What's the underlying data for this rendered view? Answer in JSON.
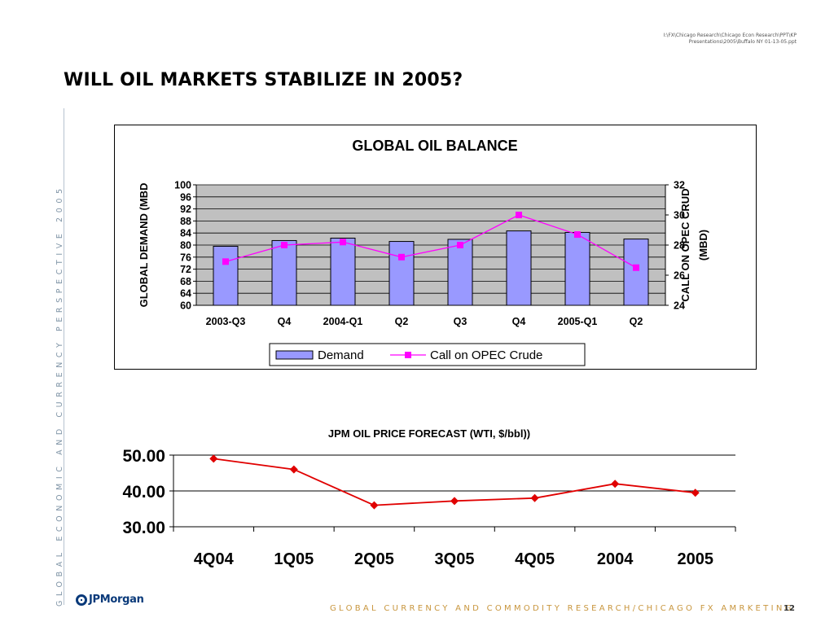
{
  "header": {
    "file_path": "I:\\FX\\Chicago Research\\Chicago Econ Research\\PPT\\KP Presentations\\2005\\Buffalo NY 01-13-05.ppt",
    "title": "WILL OIL MARKETS STABILIZE IN 2005?"
  },
  "side_banner": "GLOBAL ECONOMIC AND CURRENCY PERSPECTIVE 2005",
  "footer": {
    "logo_text": "JPMorgan",
    "text": "GLOBAL CURRENCY AND COMMODITY RESEARCH/CHICAGO FX AMRKETING",
    "page_number": "12"
  },
  "colors": {
    "bar_fill": "#9999ff",
    "plot_bg": "#c0c0c0",
    "opec_line": "#ff00ff",
    "price_line": "#e00000",
    "footer_text": "#c8963e",
    "side_text": "#7f94a6"
  },
  "chart_data": [
    {
      "type": "bar",
      "title": "GLOBAL OIL BALANCE",
      "categories": [
        "2003-Q3",
        "Q4",
        "2004-Q1",
        "Q2",
        "Q3",
        "Q4",
        "2005-Q1",
        "Q2"
      ],
      "ylabel": "GLOBAL DEMAND (MBD",
      "y2label_line1": "CALL ON OPEC CRUD",
      "y2label_line2": "(MBD)",
      "ylim": [
        60,
        100
      ],
      "yticks": [
        "100",
        "96",
        "92",
        "88",
        "84",
        "80",
        "76",
        "72",
        "68",
        "64",
        "60"
      ],
      "y2lim": [
        24,
        32
      ],
      "y2ticks": [
        "32",
        "30",
        "28",
        "26",
        "24"
      ],
      "grid": true,
      "legend_position": "bottom",
      "series": [
        {
          "name": "Demand",
          "type": "bar",
          "axis": "left",
          "values": [
            79.6,
            81.5,
            82.3,
            81.2,
            81.9,
            84.7,
            84.2,
            82.0
          ]
        },
        {
          "name": "Call on OPEC Crude",
          "type": "line",
          "axis": "right",
          "values": [
            26.9,
            28.0,
            28.2,
            27.2,
            28.0,
            30.0,
            28.7,
            26.5
          ]
        }
      ]
    },
    {
      "type": "line",
      "title": "JPM  OIL PRICE FORECAST (WTI, $/bbl))",
      "categories": [
        "4Q04",
        "1Q05",
        "2Q05",
        "3Q05",
        "4Q05",
        "2004",
        "2005"
      ],
      "ylim": [
        30,
        50
      ],
      "yticks": [
        "50.00",
        "40.00",
        "30.00"
      ],
      "grid": true,
      "series": [
        {
          "values": [
            49,
            46,
            36,
            37.2,
            38,
            42,
            39.5
          ]
        }
      ]
    }
  ]
}
